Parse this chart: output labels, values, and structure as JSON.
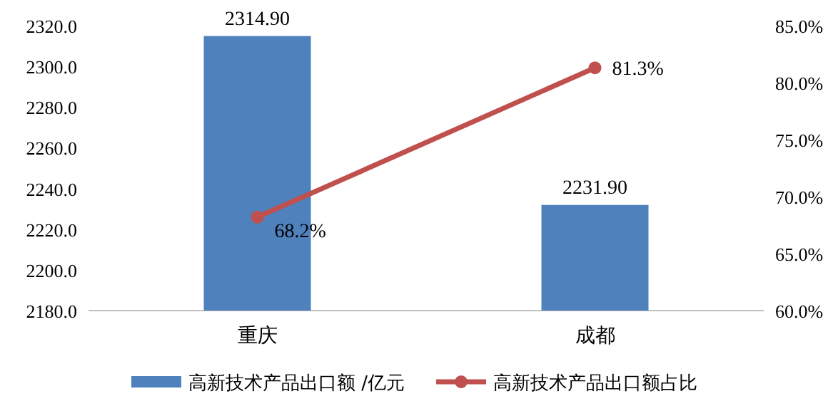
{
  "chart_data": {
    "type": "bar",
    "categories": [
      "重庆",
      "成都"
    ],
    "series": [
      {
        "name": "高新技术产品出口额 /亿元",
        "color": "#4f81bd",
        "values": [
          2314.9,
          2231.9
        ],
        "value_labels": [
          "2314.90",
          "2231.90"
        ]
      },
      {
        "name": "高新技术产品出口额占比",
        "type": "line",
        "axis": "y2",
        "color": "#c0504d",
        "values": [
          68.2,
          81.3
        ],
        "value_labels": [
          "68.2%",
          "81.3%"
        ],
        "marker": "circle"
      }
    ],
    "ylim": [
      2180,
      2320
    ],
    "yticks": [
      {
        "value": 2180,
        "label": "2180.0"
      },
      {
        "value": 2200,
        "label": "2200.0"
      },
      {
        "value": 2220,
        "label": "2220.0"
      },
      {
        "value": 2240,
        "label": "2240.0"
      },
      {
        "value": 2260,
        "label": "2260.0"
      },
      {
        "value": 2280,
        "label": "2280.0"
      },
      {
        "value": 2300,
        "label": "2300.0"
      },
      {
        "value": 2320,
        "label": "2320.0"
      }
    ],
    "y2lim": [
      60,
      85
    ],
    "y2ticks": [
      {
        "value": 60,
        "label": "60.0%"
      },
      {
        "value": 65,
        "label": "65.0%"
      },
      {
        "value": 70,
        "label": "70.0%"
      },
      {
        "value": 75,
        "label": "75.0%"
      },
      {
        "value": 80,
        "label": "80.0%"
      },
      {
        "value": 85,
        "label": "85.0%"
      }
    ],
    "legend": "bottom"
  }
}
